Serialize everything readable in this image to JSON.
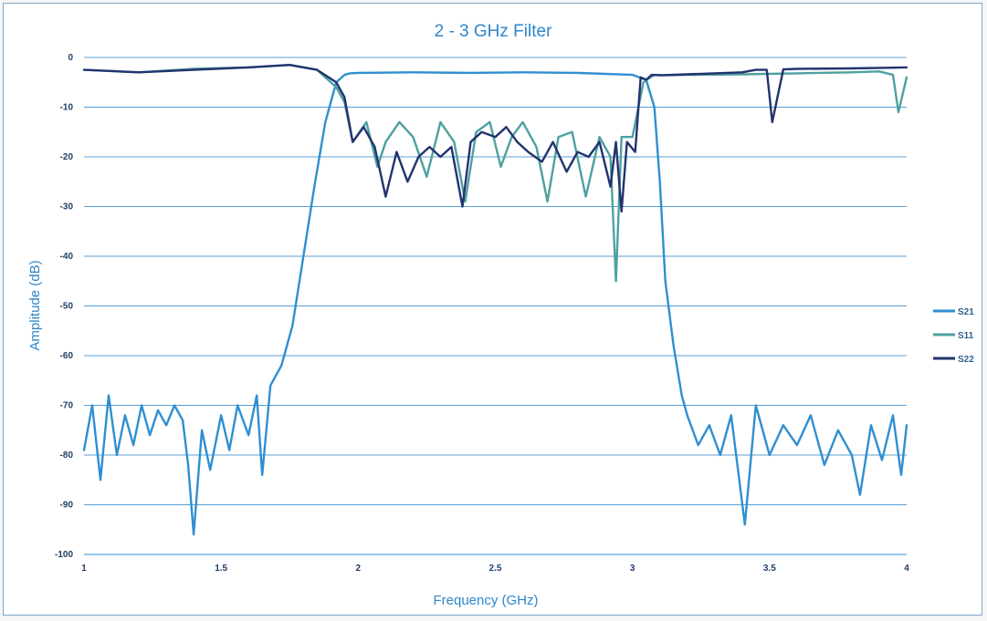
{
  "chart_data": {
    "type": "line",
    "title": "2 - 3 GHz Filter",
    "xlabel": "Frequency (GHz)",
    "ylabel": "Amplitude (dB)",
    "xlim": [
      1,
      4
    ],
    "ylim": [
      -100,
      0
    ],
    "xticks": [
      1,
      1.5,
      2,
      2.5,
      3,
      3.5,
      4
    ],
    "xtick_labels": [
      "1",
      "1.5",
      "2",
      "2.5",
      "3",
      "3.5",
      "4"
    ],
    "yticks": [
      0,
      -10,
      -20,
      -30,
      -40,
      -50,
      -60,
      -70,
      -80,
      -90,
      -100
    ],
    "ytick_labels": [
      "0",
      "-10",
      "-20",
      "-30",
      "-40",
      "-50",
      "-60",
      "-70",
      "-80",
      "-90",
      "-100"
    ],
    "grid": "horizontal",
    "legend_position": "right",
    "series": [
      {
        "name": "S21",
        "color": "#2f8fd0",
        "x": [
          1.0,
          1.03,
          1.06,
          1.09,
          1.12,
          1.15,
          1.18,
          1.21,
          1.24,
          1.27,
          1.3,
          1.33,
          1.36,
          1.38,
          1.4,
          1.43,
          1.46,
          1.5,
          1.53,
          1.56,
          1.6,
          1.63,
          1.65,
          1.68,
          1.72,
          1.76,
          1.8,
          1.84,
          1.88,
          1.92,
          1.95,
          1.97,
          2.0,
          2.2,
          2.4,
          2.6,
          2.8,
          3.0,
          3.05,
          3.08,
          3.1,
          3.12,
          3.15,
          3.18,
          3.2,
          3.24,
          3.28,
          3.32,
          3.36,
          3.41,
          3.45,
          3.5,
          3.55,
          3.6,
          3.65,
          3.7,
          3.75,
          3.8,
          3.83,
          3.87,
          3.91,
          3.95,
          3.98,
          4.0
        ],
        "values": [
          -79,
          -70,
          -85,
          -68,
          -80,
          -72,
          -78,
          -70,
          -76,
          -71,
          -74,
          -70,
          -73,
          -82,
          -96,
          -75,
          -83,
          -72,
          -79,
          -70,
          -76,
          -68,
          -84,
          -66,
          -62,
          -54,
          -40,
          -26,
          -13,
          -5,
          -3.5,
          -3.2,
          -3.1,
          -3.0,
          -3.1,
          -3.0,
          -3.1,
          -3.5,
          -4.5,
          -10,
          -25,
          -45,
          -58,
          -68,
          -72,
          -78,
          -74,
          -80,
          -72,
          -94,
          -70,
          -80,
          -74,
          -78,
          -72,
          -82,
          -75,
          -80,
          -88,
          -74,
          -81,
          -72,
          -84,
          -74
        ]
      },
      {
        "name": "S11",
        "color": "#4ea0a0",
        "x": [
          1.0,
          1.2,
          1.4,
          1.6,
          1.75,
          1.85,
          1.92,
          1.95,
          1.98,
          2.03,
          2.07,
          2.1,
          2.15,
          2.2,
          2.25,
          2.3,
          2.35,
          2.39,
          2.43,
          2.48,
          2.52,
          2.56,
          2.6,
          2.65,
          2.69,
          2.73,
          2.78,
          2.83,
          2.88,
          2.92,
          2.94,
          2.96,
          3.0,
          3.04,
          3.06,
          3.08,
          3.12,
          3.2,
          3.4,
          3.6,
          3.8,
          3.9,
          3.95,
          3.97,
          4.0
        ],
        "values": [
          -2.5,
          -3.0,
          -2.3,
          -2.0,
          -1.5,
          -2.5,
          -6,
          -9,
          -17,
          -13,
          -22,
          -17,
          -13,
          -16,
          -24,
          -13,
          -17,
          -29,
          -15,
          -13,
          -22,
          -16,
          -13,
          -18,
          -29,
          -16,
          -15,
          -28,
          -16,
          -20,
          -45,
          -16,
          -16,
          -5,
          -4.2,
          -3.5,
          -3.6,
          -3.5,
          -3.4,
          -3.2,
          -3.0,
          -2.8,
          -3.5,
          -11,
          -4
        ]
      },
      {
        "name": "S22",
        "color": "#22336e",
        "x": [
          1.0,
          1.2,
          1.4,
          1.6,
          1.75,
          1.85,
          1.92,
          1.95,
          1.98,
          2.02,
          2.06,
          2.1,
          2.14,
          2.18,
          2.22,
          2.26,
          2.3,
          2.34,
          2.38,
          2.41,
          2.45,
          2.5,
          2.54,
          2.58,
          2.62,
          2.67,
          2.71,
          2.76,
          2.8,
          2.84,
          2.88,
          2.92,
          2.94,
          2.96,
          2.98,
          3.01,
          3.03,
          3.05,
          3.07,
          3.1,
          3.2,
          3.4,
          3.45,
          3.49,
          3.51,
          3.55,
          3.6,
          3.8,
          4.0
        ],
        "values": [
          -2.5,
          -3.0,
          -2.5,
          -2.0,
          -1.5,
          -2.5,
          -5,
          -8,
          -17,
          -14,
          -18,
          -28,
          -19,
          -25,
          -20,
          -18,
          -20,
          -18,
          -30,
          -17,
          -15,
          -16,
          -14,
          -17,
          -19,
          -21,
          -17,
          -23,
          -19,
          -20,
          -17,
          -26,
          -17,
          -31,
          -17,
          -19,
          -4,
          -4.5,
          -3.5,
          -3.6,
          -3.4,
          -3.0,
          -2.5,
          -2.5,
          -13,
          -2.4,
          -2.3,
          -2.2,
          -2.0
        ]
      }
    ]
  }
}
